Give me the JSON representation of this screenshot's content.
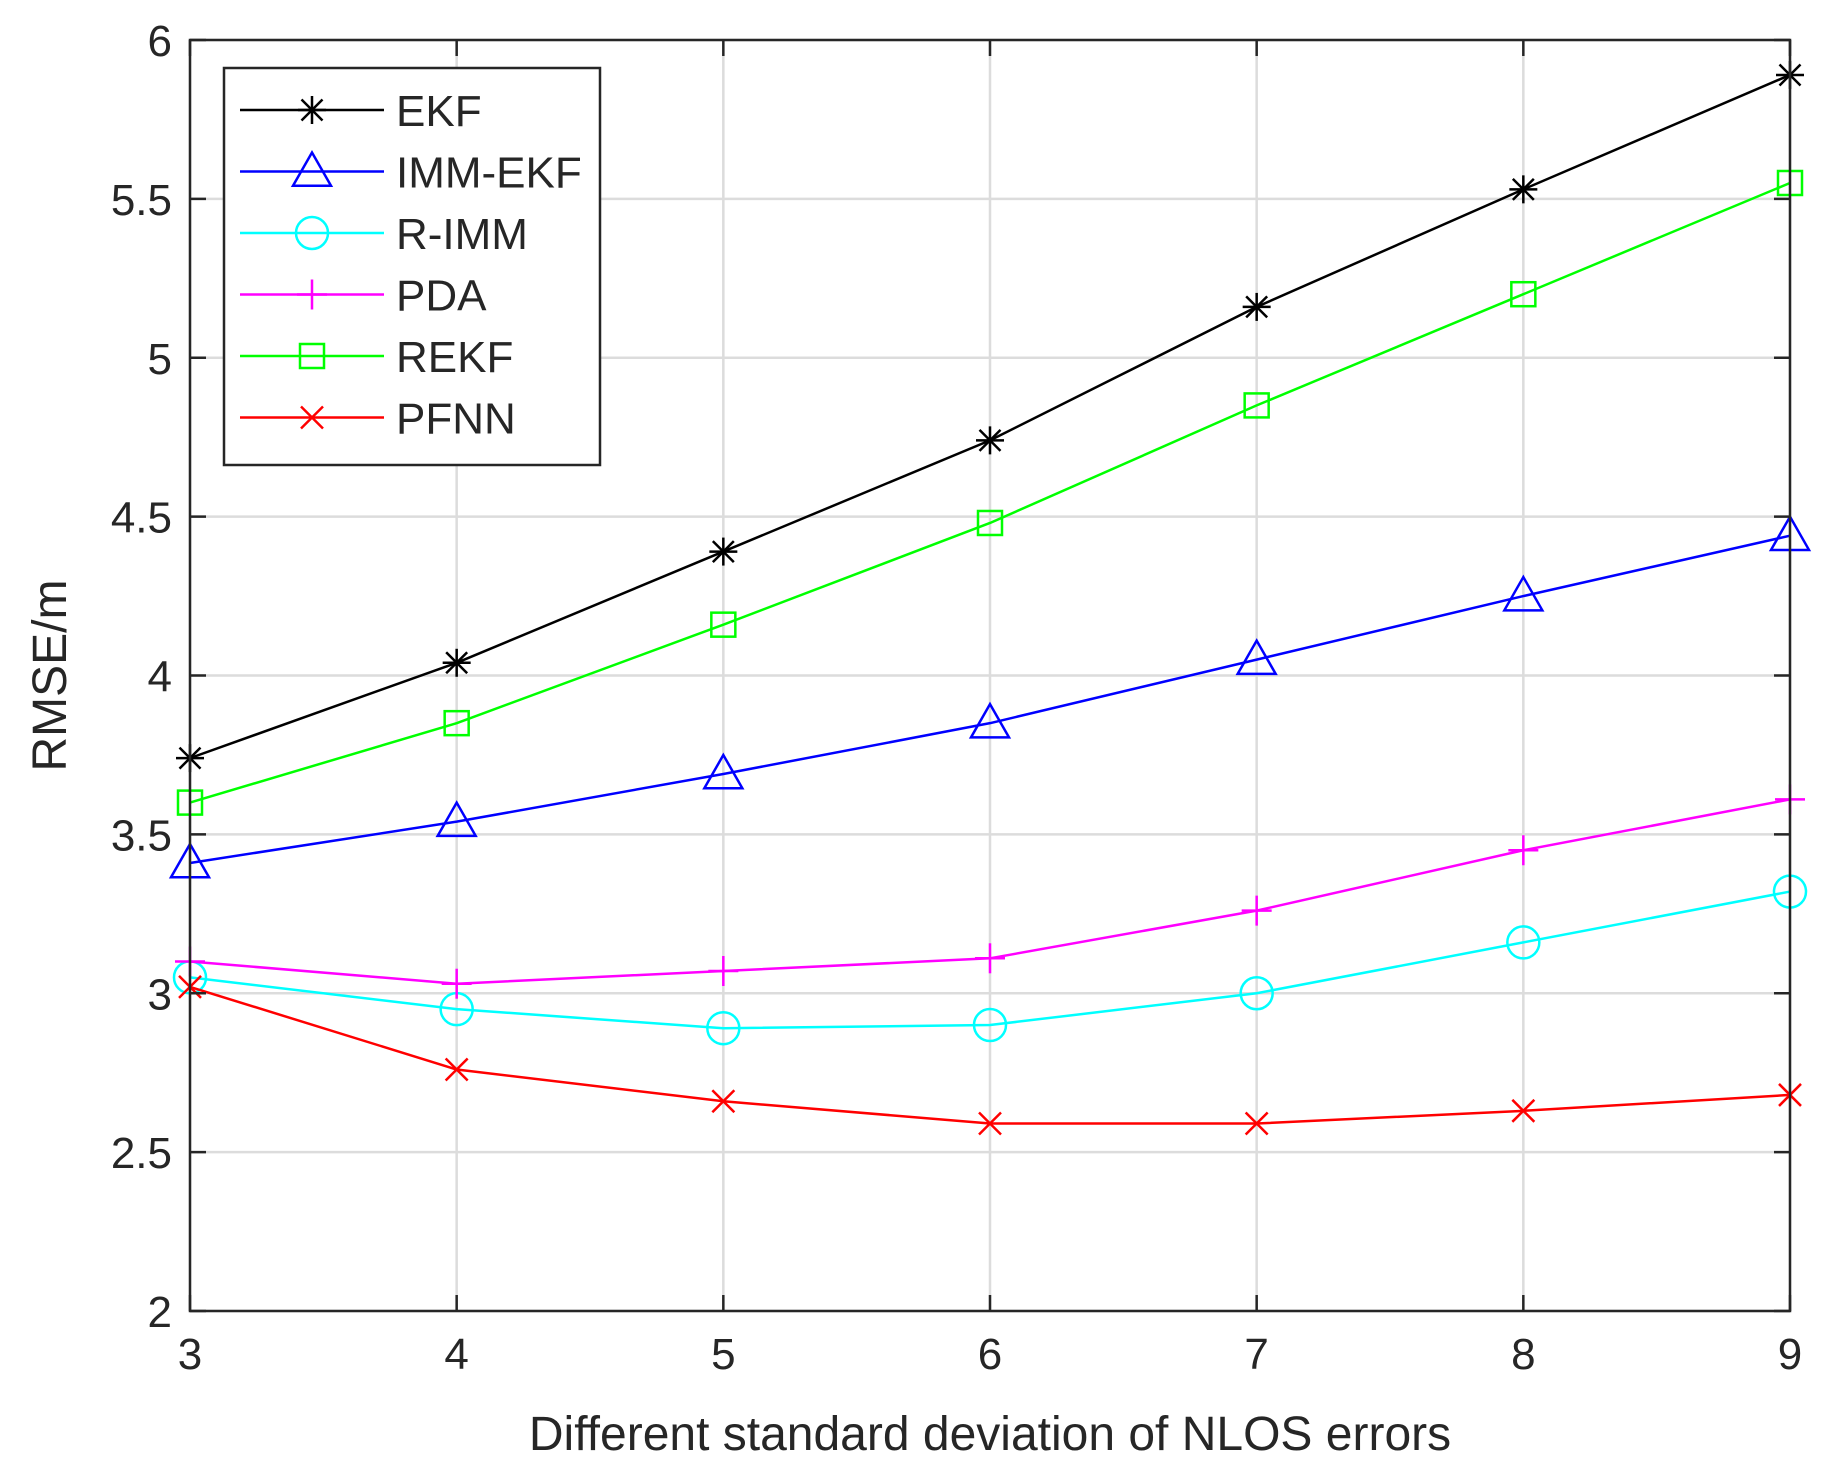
{
  "chart_data": {
    "type": "line",
    "title": "",
    "xlabel": "Different standard deviation of NLOS errors",
    "ylabel": "RMSE/m",
    "x": [
      3,
      4,
      5,
      6,
      7,
      8,
      9
    ],
    "xlim": [
      3,
      9
    ],
    "ylim": [
      2,
      6
    ],
    "xticks": [
      "3",
      "4",
      "5",
      "6",
      "7",
      "8",
      "9"
    ],
    "yticks": [
      "2",
      "2.5",
      "3",
      "3.5",
      "4",
      "4.5",
      "5",
      "5.5",
      "6"
    ],
    "grid": true,
    "legend_position": "top-left",
    "series": [
      {
        "name": "EKF",
        "color": "#000000",
        "marker": "asterisk",
        "values": [
          3.74,
          4.04,
          4.39,
          4.74,
          5.16,
          5.53,
          5.89
        ]
      },
      {
        "name": "IMM-EKF",
        "color": "#0000ff",
        "marker": "triangle",
        "values": [
          3.41,
          3.54,
          3.69,
          3.85,
          4.05,
          4.25,
          4.44
        ]
      },
      {
        "name": "R-IMM",
        "color": "#00ffff",
        "marker": "circle",
        "values": [
          3.05,
          2.95,
          2.89,
          2.9,
          3.0,
          3.16,
          3.32
        ]
      },
      {
        "name": "PDA",
        "color": "#ff00ff",
        "marker": "plus",
        "values": [
          3.1,
          3.03,
          3.07,
          3.11,
          3.26,
          3.45,
          3.61
        ]
      },
      {
        "name": "REKF",
        "color": "#00ff00",
        "marker": "square",
        "values": [
          3.6,
          3.85,
          4.16,
          4.48,
          4.85,
          5.2,
          5.55
        ]
      },
      {
        "name": "PFNN",
        "color": "#ff0000",
        "marker": "x",
        "values": [
          3.02,
          2.76,
          2.66,
          2.59,
          2.59,
          2.63,
          2.68
        ]
      }
    ]
  }
}
